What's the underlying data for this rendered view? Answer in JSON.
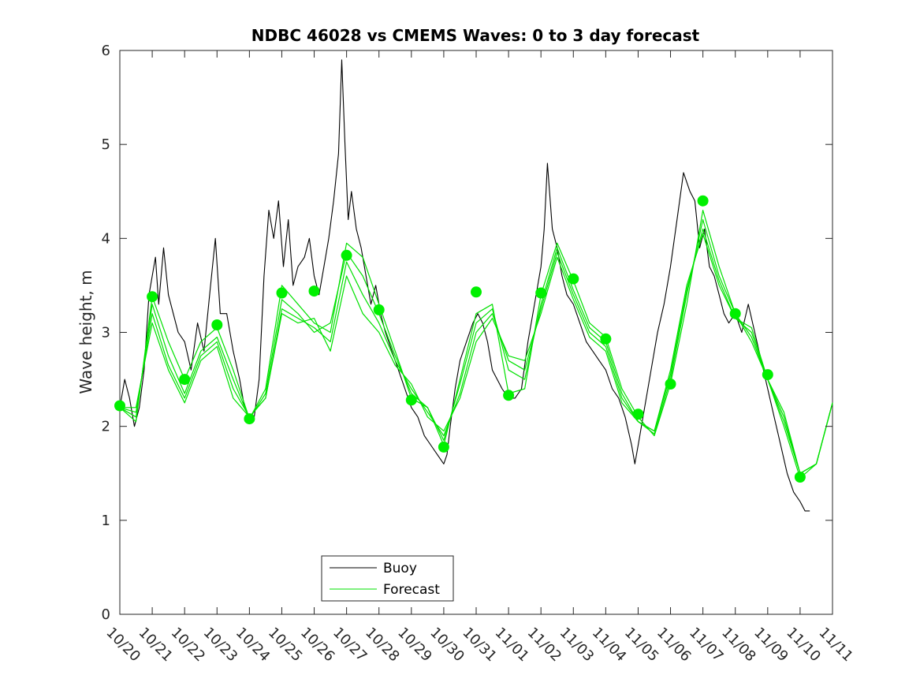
{
  "chart_data": {
    "type": "line",
    "title": "NDBC 46028 vs CMEMS Waves: 0 to 3 day forecast",
    "xlabel": "",
    "ylabel": "Wave height, m",
    "xlim": [
      0,
      22
    ],
    "ylim": [
      0,
      6
    ],
    "x_tick_values": [
      0,
      1,
      2,
      3,
      4,
      5,
      6,
      7,
      8,
      9,
      10,
      11,
      12,
      13,
      14,
      15,
      16,
      17,
      18,
      19,
      20,
      21,
      22
    ],
    "x_tick_labels": [
      "10/20",
      "10/21",
      "10/22",
      "10/23",
      "10/24",
      "10/25",
      "10/26",
      "10/27",
      "10/28",
      "10/29",
      "10/30",
      "10/31",
      "11/01",
      "11/02",
      "11/03",
      "11/04",
      "11/05",
      "11/06",
      "11/07",
      "11/08",
      "11/09",
      "11/10",
      "11/11"
    ],
    "y_tick_values": [
      0,
      1,
      2,
      3,
      4,
      5,
      6
    ],
    "y_tick_labels": [
      "0",
      "1",
      "2",
      "3",
      "4",
      "5",
      "6"
    ],
    "legend": {
      "position": "bottom-center",
      "entries": [
        {
          "label": "Buoy",
          "color": "#000000"
        },
        {
          "label": "Forecast",
          "color": "#00e000"
        }
      ]
    },
    "colors": {
      "buoy": "#000000",
      "forecast": "#00e000",
      "marker": "#00f000",
      "axis": "#262626"
    },
    "series": [
      {
        "name": "Buoy",
        "x": [
          0.0,
          0.15,
          0.3,
          0.45,
          0.6,
          0.75,
          0.9,
          1.0,
          1.1,
          1.2,
          1.35,
          1.5,
          1.65,
          1.8,
          2.0,
          2.2,
          2.4,
          2.6,
          2.8,
          2.95,
          3.1,
          3.3,
          3.5,
          3.7,
          3.85,
          4.0,
          4.15,
          4.3,
          4.45,
          4.6,
          4.75,
          4.9,
          5.05,
          5.2,
          5.35,
          5.5,
          5.7,
          5.85,
          6.0,
          6.15,
          6.3,
          6.45,
          6.6,
          6.75,
          6.85,
          6.95,
          7.05,
          7.15,
          7.3,
          7.45,
          7.6,
          7.75,
          7.9,
          8.05,
          8.2,
          8.4,
          8.6,
          8.8,
          9.0,
          9.2,
          9.4,
          9.6,
          9.8,
          10.0,
          10.1,
          10.2,
          10.35,
          10.5,
          10.7,
          10.9,
          11.05,
          11.2,
          11.35,
          11.5,
          11.65,
          11.8,
          12.0,
          12.2,
          12.4,
          12.6,
          12.8,
          13.0,
          13.1,
          13.2,
          13.35,
          13.5,
          13.65,
          13.8,
          14.0,
          14.2,
          14.4,
          14.6,
          14.8,
          15.0,
          15.2,
          15.4,
          15.6,
          15.8,
          15.9,
          16.0,
          16.2,
          16.4,
          16.6,
          16.8,
          17.0,
          17.2,
          17.4,
          17.6,
          17.75,
          17.9,
          18.05,
          18.2,
          18.35,
          18.5,
          18.65,
          18.8,
          19.0,
          19.2,
          19.4,
          19.6,
          19.8,
          20.0,
          20.2,
          20.4,
          20.6,
          20.8,
          21.0,
          21.15,
          21.3
        ],
        "y": [
          2.2,
          2.5,
          2.3,
          2.0,
          2.2,
          2.6,
          3.4,
          3.6,
          3.8,
          3.3,
          3.9,
          3.4,
          3.2,
          3.0,
          2.9,
          2.6,
          3.1,
          2.8,
          3.5,
          4.0,
          3.2,
          3.2,
          2.8,
          2.5,
          2.2,
          2.1,
          2.1,
          2.5,
          3.6,
          4.3,
          4.0,
          4.4,
          3.7,
          4.2,
          3.5,
          3.7,
          3.8,
          4.0,
          3.6,
          3.4,
          3.7,
          4.0,
          4.4,
          4.9,
          5.9,
          5.0,
          4.2,
          4.5,
          4.1,
          3.9,
          3.6,
          3.3,
          3.5,
          3.2,
          3.0,
          2.8,
          2.6,
          2.4,
          2.2,
          2.1,
          1.9,
          1.8,
          1.7,
          1.6,
          1.7,
          2.0,
          2.4,
          2.7,
          2.9,
          3.1,
          3.2,
          3.1,
          2.9,
          2.6,
          2.5,
          2.4,
          2.3,
          2.3,
          2.4,
          2.9,
          3.3,
          3.7,
          4.1,
          4.8,
          4.1,
          3.9,
          3.6,
          3.4,
          3.3,
          3.1,
          2.9,
          2.8,
          2.7,
          2.6,
          2.4,
          2.3,
          2.1,
          1.8,
          1.6,
          1.8,
          2.2,
          2.6,
          3.0,
          3.3,
          3.7,
          4.2,
          4.7,
          4.5,
          4.4,
          3.9,
          4.1,
          3.7,
          3.6,
          3.4,
          3.2,
          3.1,
          3.2,
          3.0,
          3.3,
          3.0,
          2.7,
          2.4,
          2.1,
          1.8,
          1.5,
          1.3,
          1.2,
          1.1,
          1.1
        ]
      },
      {
        "name": "Forecast run 1",
        "x": [
          0,
          0.5,
          1,
          1.5,
          2,
          2.5,
          3,
          3.5,
          4,
          4.5,
          5,
          5.5,
          6,
          6.5,
          7,
          7.5,
          8,
          8.5,
          9,
          9.5,
          10,
          10.5,
          11,
          11.5,
          12,
          12.5,
          13,
          13.5,
          14,
          14.5,
          15,
          15.5,
          16,
          16.5,
          17,
          17.5,
          18,
          18.5,
          19,
          19.5,
          20,
          20.5,
          21,
          21.5,
          22
        ],
        "y": [
          2.2,
          2.05,
          3.38,
          2.9,
          2.5,
          2.9,
          3.05,
          2.6,
          2.08,
          2.4,
          3.5,
          3.3,
          3.1,
          3.0,
          3.95,
          3.8,
          3.3,
          2.8,
          2.3,
          2.2,
          1.8,
          2.5,
          3.2,
          3.3,
          2.35,
          2.4,
          3.4,
          3.95,
          3.55,
          3.1,
          2.95,
          2.4,
          2.1,
          1.9,
          2.45,
          3.3,
          4.3,
          3.7,
          3.2,
          2.9,
          2.5,
          2.0,
          1.45,
          1.6,
          2.25
        ]
      },
      {
        "name": "Forecast run 2",
        "x": [
          0,
          0.5,
          1,
          1.5,
          2,
          2.5,
          3,
          3.5,
          4,
          4.5,
          5,
          5.5,
          6,
          6.5,
          7,
          7.5,
          8,
          8.5,
          9,
          9.5,
          10,
          10.5,
          11,
          11.5,
          12,
          12.5,
          13,
          13.5,
          14,
          14.5,
          15,
          15.5,
          16,
          16.5,
          17,
          17.5,
          18,
          18.5,
          19,
          19.5,
          20,
          20.5,
          21,
          21.5,
          22
        ],
        "y": [
          2.2,
          2.1,
          3.3,
          2.75,
          2.35,
          2.8,
          2.95,
          2.5,
          2.08,
          2.35,
          3.35,
          3.2,
          3.0,
          3.1,
          3.85,
          3.6,
          3.2,
          2.75,
          2.35,
          2.2,
          1.85,
          2.45,
          3.1,
          3.25,
          2.6,
          2.5,
          3.3,
          3.9,
          3.45,
          3.05,
          2.9,
          2.35,
          2.05,
          1.92,
          2.5,
          3.4,
          4.2,
          3.6,
          3.2,
          2.95,
          2.5,
          2.05,
          1.5,
          1.6,
          2.25
        ]
      },
      {
        "name": "Forecast run 3",
        "x": [
          0,
          0.5,
          1,
          1.5,
          2,
          2.5,
          3,
          3.5,
          4,
          4.5,
          5,
          5.5,
          6,
          6.5,
          7,
          7.5,
          8,
          8.5,
          9,
          9.5,
          10,
          10.5,
          11,
          11.5,
          12,
          12.5,
          13,
          13.5,
          14,
          14.5,
          15,
          15.5,
          16,
          16.5,
          17,
          17.5,
          18,
          18.5,
          19,
          19.5,
          20,
          20.5,
          21,
          21.5,
          22
        ],
        "y": [
          2.2,
          2.15,
          3.2,
          2.65,
          2.3,
          2.75,
          2.9,
          2.4,
          2.1,
          2.3,
          3.25,
          3.15,
          3.05,
          2.9,
          3.75,
          3.4,
          3.1,
          2.7,
          2.4,
          2.15,
          1.9,
          2.35,
          3.0,
          3.2,
          2.7,
          2.6,
          3.25,
          3.85,
          3.4,
          3.0,
          2.85,
          2.3,
          2.05,
          1.95,
          2.55,
          3.45,
          4.1,
          3.55,
          3.15,
          3.0,
          2.5,
          2.1,
          1.5,
          1.6,
          2.25
        ]
      },
      {
        "name": "Forecast run 4",
        "x": [
          0,
          0.5,
          1,
          1.5,
          2,
          2.5,
          3,
          3.5,
          4,
          4.5,
          5,
          5.5,
          6,
          6.5,
          7,
          7.5,
          8,
          8.5,
          9,
          9.5,
          10,
          10.5,
          11,
          11.5,
          12,
          12.5,
          13,
          13.5,
          14,
          14.5,
          15,
          15.5,
          16,
          16.5,
          17,
          17.5,
          18,
          18.5,
          19,
          19.5,
          20,
          20.5,
          21,
          21.5,
          22
        ],
        "y": [
          2.2,
          2.2,
          3.1,
          2.6,
          2.25,
          2.7,
          2.85,
          2.3,
          2.1,
          2.3,
          3.2,
          3.1,
          3.15,
          2.8,
          3.6,
          3.2,
          3.0,
          2.65,
          2.45,
          2.1,
          1.95,
          2.3,
          2.9,
          3.15,
          2.75,
          2.7,
          3.2,
          3.8,
          3.35,
          2.95,
          2.8,
          2.25,
          2.05,
          1.95,
          2.6,
          3.5,
          4.05,
          3.5,
          3.15,
          3.05,
          2.5,
          2.15,
          1.5,
          1.6,
          2.25
        ]
      },
      {
        "name": "Forecast initial points",
        "x": [
          0,
          1,
          2,
          3,
          4,
          5,
          6,
          7,
          8,
          9,
          10,
          11,
          12,
          13,
          14,
          15,
          16,
          17,
          18,
          19,
          20,
          21
        ],
        "y": [
          2.22,
          3.38,
          2.5,
          3.08,
          2.08,
          3.42,
          3.44,
          3.82,
          3.24,
          2.28,
          1.78,
          3.43,
          2.33,
          3.42,
          3.57,
          2.93,
          2.13,
          2.45,
          4.4,
          3.2,
          2.55,
          1.46
        ]
      }
    ]
  }
}
